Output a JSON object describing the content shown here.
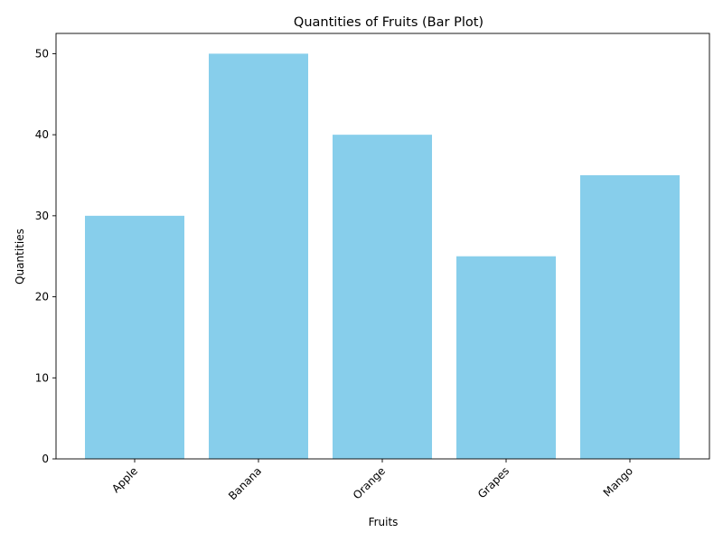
{
  "chart_data": {
    "type": "bar",
    "title": "Quantities of Fruits (Bar Plot)",
    "xlabel": "Fruits",
    "ylabel": "Quantities",
    "categories": [
      "Apple",
      "Banana",
      "Orange",
      "Grapes",
      "Mango"
    ],
    "values": [
      30,
      50,
      40,
      25,
      35
    ],
    "ylim": [
      0,
      52.5
    ],
    "yticks": [
      "0",
      "10",
      "20",
      "30",
      "40",
      "50"
    ],
    "bar_color": "#87ceeb",
    "grid": false,
    "legend": "none",
    "xtick_rotation": "45°"
  }
}
